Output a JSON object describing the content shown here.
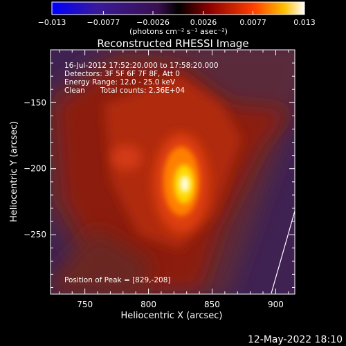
{
  "chart_data": {
    "type": "heatmap",
    "title": "Reconstructed RHESSI Image",
    "xlabel": "Heliocentric X (arcsec)",
    "ylabel": "Heliocentric Y (arcsec)",
    "xlim": [
      723,
      915
    ],
    "ylim": [
      -295,
      -110
    ],
    "xticks": [
      750,
      800,
      850,
      900
    ],
    "yticks": [
      -150,
      -200,
      -250
    ],
    "colorbar": {
      "tick_labels": [
        "−0.013",
        "−0.0077",
        "−0.0026",
        "0.0026",
        "0.0077",
        "0.013"
      ],
      "range": [
        -0.013,
        0.013
      ],
      "unit_label": "(photons cm⁻² s⁻¹ asec⁻²)"
    },
    "annotations": {
      "time_range": "16-Jul-2012 17:52:20.000 to 17:58:20.000",
      "detectors": "Detectors: 3F 5F 6F 7F 8F, Att 0",
      "energy_range": "Energy Range: 12.0 - 25.0 keV",
      "clean_label": "Clean",
      "total_counts": "Total counts: 2.36E+04",
      "peak_position": "Position of Peak = [829,-208]"
    },
    "peak": [
      829,
      -208
    ],
    "colors": {
      "background": "#000000",
      "text": "#ffffff"
    }
  },
  "footer_timestamp": "12-May-2022 18:10"
}
